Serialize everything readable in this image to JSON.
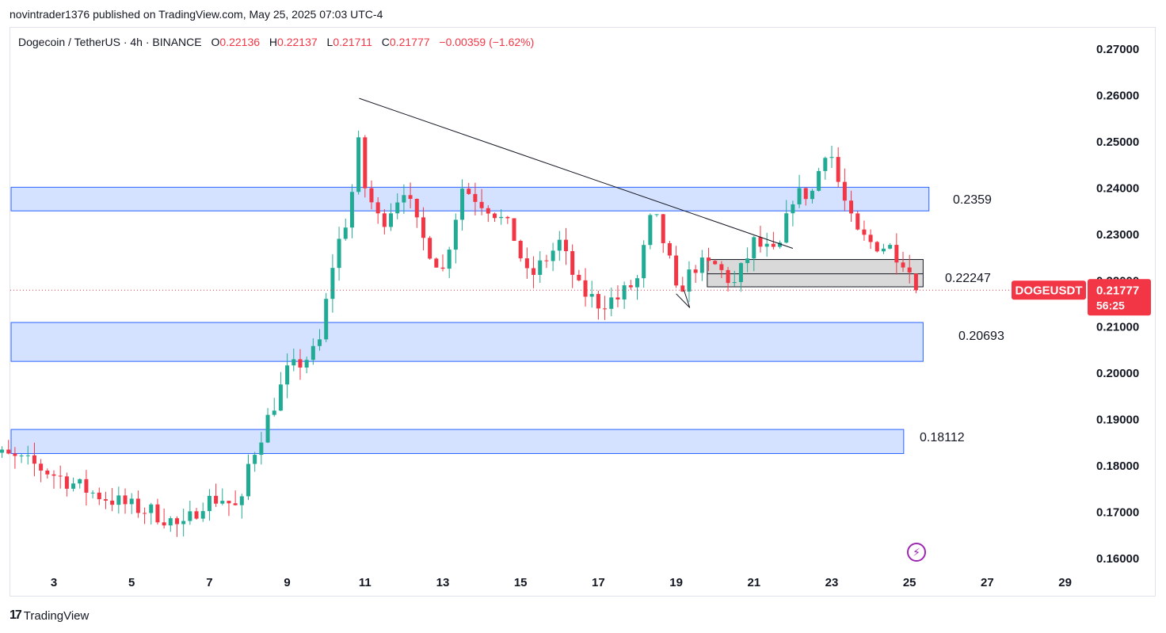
{
  "header": {
    "published_by": "novintrader1376 published on TradingView.com, May 25, 2025 07:03 UTC-4"
  },
  "legend": {
    "symbol": "Dogecoin / TetherUS · 4h · BINANCE",
    "o_label": "O",
    "o_value": "0.22136",
    "h_label": "H",
    "h_value": "0.22137",
    "l_label": "L",
    "l_value": "0.21711",
    "c_label": "C",
    "c_value": "0.21777",
    "change": "−0.00359 (−1.62%)"
  },
  "footer": {
    "brand": "TradingView",
    "brand_mark": "17"
  },
  "colors": {
    "up": "#22ab94",
    "down": "#f23645",
    "zone_fill": "#d4e1ff",
    "zone_stroke": "#2962ff",
    "grey_fill": "#d9d9d9",
    "price_tag": "#f23645",
    "trendline": "#131722"
  },
  "chart_data": {
    "type": "candlestick",
    "title": "Dogecoin / TetherUS · 4h · BINANCE",
    "ylim": [
      0.155,
      0.273
    ],
    "xlim": [
      1.0,
      30.3
    ],
    "y_ticks": [
      "0.27000",
      "0.26000",
      "0.25000",
      "0.24000",
      "0.23000",
      "0.22000",
      "0.21000",
      "0.20000",
      "0.19000",
      "0.18000",
      "0.17000",
      "0.16000"
    ],
    "x_ticks": [
      "3",
      "5",
      "7",
      "9",
      "11",
      "13",
      "15",
      "17",
      "19",
      "21",
      "23",
      "25",
      "27",
      "29"
    ],
    "last_price": {
      "symbol": "DOGEUSDT",
      "price": "0.21777",
      "countdown": "56:25",
      "value": 0.21777
    },
    "zones": [
      {
        "label": "0.2359",
        "low": 0.2349,
        "high": 0.24,
        "x_start": 1.0,
        "x_end": 25.5
      },
      {
        "label": "0.20693",
        "low": 0.2024,
        "high": 0.2108,
        "x_start": 1.0,
        "x_end": 25.35
      },
      {
        "label": "0.18112",
        "low": 0.1825,
        "high": 0.1877,
        "x_start": 1.0,
        "x_end": 24.85
      }
    ],
    "grey_box": {
      "label": "0.22247",
      "low": 0.2185,
      "high": 0.2244,
      "mid": 0.2213,
      "x_start": 19.8,
      "x_end": 25.35
    },
    "trendline": {
      "x1": 10.85,
      "y1": 0.2592,
      "x2": 22.0,
      "y2": 0.2268
    },
    "candles_note": "approximate OHLC per 4h bar, read from chart",
    "candles": []
  }
}
